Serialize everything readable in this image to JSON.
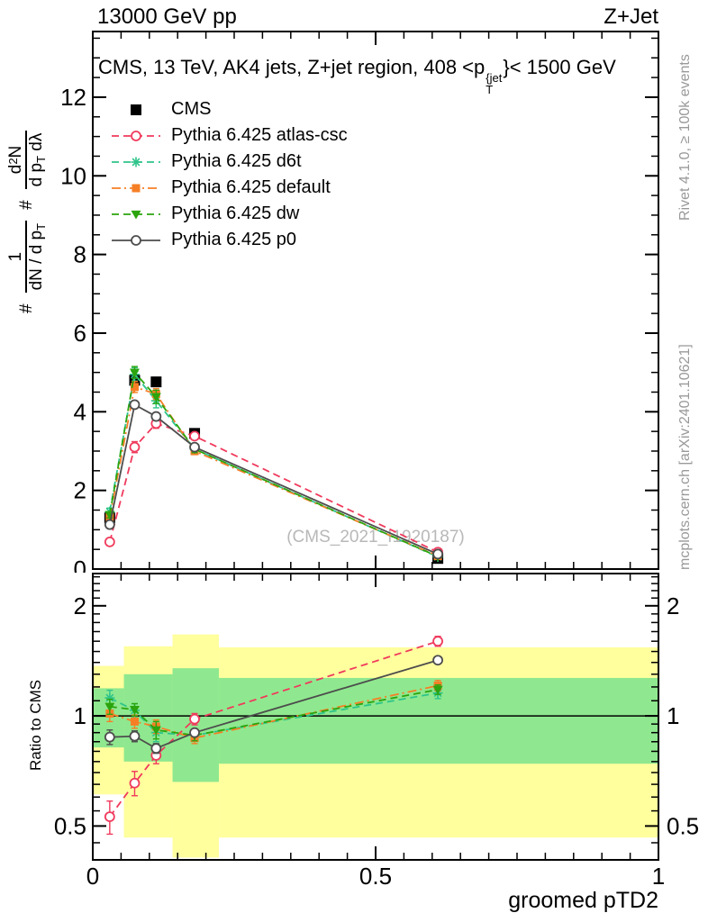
{
  "header": {
    "left": "13000 GeV pp",
    "right": "Z+Jet"
  },
  "title": {
    "prefix": "CMS, 13 TeV, AK4 jets, Z+jet region, 408 <p",
    "sup": "{jet",
    "sub": "T",
    "suffix": "}< 1500 GeV"
  },
  "ylabel": {
    "hash1": "#",
    "f1_num": "1",
    "f1_den_a": "dN / d p",
    "f1_den_sub": "T",
    "hash2": "#",
    "f2_num_a": "d",
    "f2_num_sup": "2",
    "f2_num_b": "N",
    "f2_den_a": "d p",
    "f2_den_sub": "T",
    "f2_den_b": " dλ"
  },
  "labels": {
    "ratio": "Ratio to CMS",
    "rivet": "Rivet 4.1.0, ≥ 100k events",
    "mcplots": "mcplots.cern.ch [arXiv:2401.10621]",
    "watermark": "(CMS_2021_I1920187)"
  },
  "chart_data": {
    "type": "line",
    "xlabel": "groomed pTD2",
    "xlim": [
      0,
      1
    ],
    "x_minor_step": 0.05,
    "xticks": [
      {
        "v": 0,
        "label": "0"
      },
      {
        "v": 0.5,
        "label": "0.5"
      },
      {
        "v": 1,
        "label": "1"
      }
    ],
    "x_points": [
      0.03,
      0.074,
      0.112,
      0.18,
      0.61
    ],
    "main_panel": {
      "ylim": [
        0,
        13.67
      ],
      "y_minor_step": 0.5,
      "y_major_step": 2,
      "yticks": [
        {
          "v": 0,
          "label": "0"
        },
        {
          "v": 2,
          "label": "2"
        },
        {
          "v": 4,
          "label": "4"
        },
        {
          "v": 6,
          "label": "6"
        },
        {
          "v": 8,
          "label": "8"
        },
        {
          "v": 10,
          "label": "10"
        },
        {
          "v": 12,
          "label": "12"
        }
      ],
      "series": [
        {
          "name": "CMS",
          "color": "#000000",
          "marker": "square",
          "line": "none",
          "msize": 12,
          "values": [
            1.3,
            4.8,
            4.76,
            3.45,
            0.27
          ],
          "yerr": [
            0,
            0,
            0,
            0,
            0
          ]
        },
        {
          "name": "Pythia 6.425 atlas-csc",
          "color": "#f03a5c",
          "marker": "circle",
          "line": "dashed",
          "msize": 10,
          "values": [
            0.69,
            3.1,
            3.7,
            3.38,
            0.43
          ],
          "yerr": [
            0.07,
            0.14,
            0.12,
            0.09,
            0.04
          ]
        },
        {
          "name": "Pythia 6.425 d6t",
          "color": "#2ec48a",
          "marker": "asterisk",
          "line": "dashed",
          "msize": 11,
          "values": [
            1.46,
            4.95,
            4.28,
            3.05,
            0.31
          ],
          "yerr": [
            0.09,
            0.17,
            0.18,
            0.09,
            0.03
          ]
        },
        {
          "name": "Pythia 6.425 default",
          "color": "#f67f26",
          "marker": "square",
          "line": "dashdot",
          "msize": 9,
          "values": [
            1.32,
            4.63,
            4.45,
            3.0,
            0.33
          ],
          "yerr": [
            0.07,
            0.14,
            0.14,
            0.09,
            0.03
          ]
        },
        {
          "name": "Pythia 6.425 dw",
          "color": "#2ba40d",
          "marker": "triangle-down",
          "line": "dashed",
          "msize": 11,
          "values": [
            1.38,
            5.0,
            4.38,
            3.05,
            0.32
          ],
          "yerr": [
            0.08,
            0.15,
            0.17,
            0.09,
            0.03
          ]
        },
        {
          "name": "Pythia 6.425 p0",
          "color": "#4d4d4d",
          "marker": "circle",
          "line": "solid",
          "msize": 10,
          "values": [
            1.13,
            4.18,
            3.88,
            3.1,
            0.38
          ],
          "yerr": [
            0.05,
            0.09,
            0.09,
            0.07,
            0.03
          ]
        }
      ]
    },
    "ratio_panel": {
      "scale": "log",
      "ylim": [
        0.404,
        2.45
      ],
      "unity_line": 1,
      "yticks": [
        {
          "v": 0.5,
          "label": "0.5"
        },
        {
          "v": 1,
          "label": "1"
        },
        {
          "v": 2,
          "label": "2"
        }
      ],
      "y_minor": [
        0.45,
        0.55,
        0.6,
        0.65,
        0.7,
        0.75,
        0.8,
        0.85,
        0.9,
        0.95,
        1.1,
        1.2,
        1.3,
        1.4,
        1.5,
        1.6,
        1.7,
        1.8,
        1.9,
        2.1,
        2.2,
        2.3,
        2.4
      ],
      "band_colors": {
        "outer": "#ffff9e",
        "inner": "#8fe88f"
      },
      "bands": [
        {
          "x0": 0.0,
          "x1": 0.055,
          "yellow": [
            0.61,
            1.37
          ],
          "green": [
            0.82,
            1.19
          ]
        },
        {
          "x0": 0.055,
          "x1": 0.141,
          "yellow": [
            0.465,
            1.55
          ],
          "green": [
            0.75,
            1.3
          ]
        },
        {
          "x0": 0.141,
          "x1": 0.223,
          "yellow": [
            0.41,
            1.67
          ],
          "green": [
            0.66,
            1.35
          ]
        },
        {
          "x0": 0.223,
          "x1": 1.0,
          "yellow": [
            0.465,
            1.54
          ],
          "green": [
            0.74,
            1.27
          ]
        }
      ],
      "series": [
        {
          "name": "Pythia 6.425 atlas-csc",
          "values": [
            0.53,
            0.655,
            0.78,
            0.98,
            1.6
          ],
          "yerr": [
            0.055,
            0.05,
            0.04,
            0.035,
            0.05
          ]
        },
        {
          "name": "Pythia 6.425 d6t",
          "values": [
            1.12,
            1.035,
            0.9,
            0.885,
            1.155
          ],
          "yerr": [
            0.055,
            0.045,
            0.05,
            0.03,
            0.04
          ]
        },
        {
          "name": "Pythia 6.425 default",
          "values": [
            1.015,
            0.965,
            0.935,
            0.87,
            1.21
          ],
          "yerr": [
            0.05,
            0.04,
            0.04,
            0.03,
            0.04
          ]
        },
        {
          "name": "Pythia 6.425 dw",
          "values": [
            1.06,
            1.04,
            0.915,
            0.885,
            1.18
          ],
          "yerr": [
            0.05,
            0.04,
            0.05,
            0.03,
            0.035
          ]
        },
        {
          "name": "Pythia 6.425 p0",
          "values": [
            0.875,
            0.88,
            0.815,
            0.9,
            1.42
          ],
          "yerr": [
            0.04,
            0.03,
            0.025,
            0.02,
            0.03
          ]
        }
      ]
    }
  }
}
